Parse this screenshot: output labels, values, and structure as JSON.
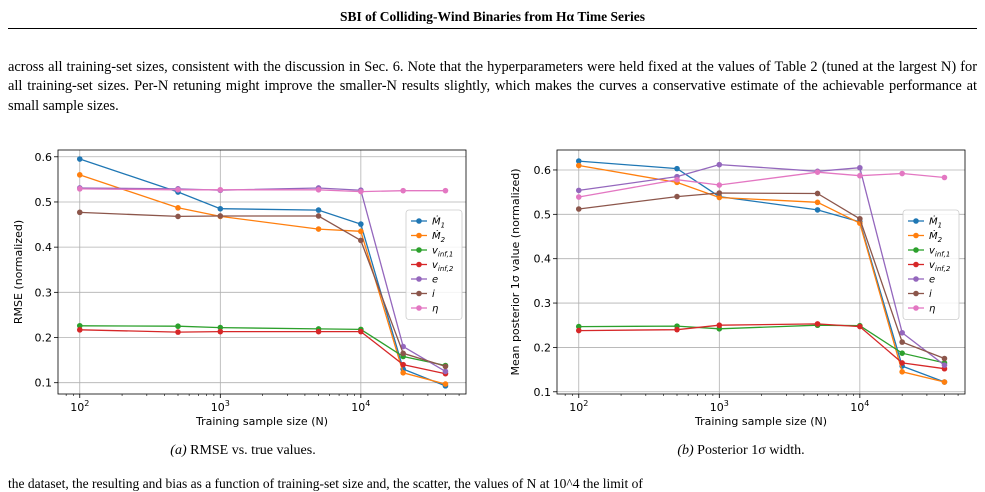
{
  "header": {
    "title": "SBI of Colliding-Wind Binaries from Hα Time Series"
  },
  "body_text": "across all training-set sizes, consistent with the discussion in Sec. 6. Note that the hyperparameters were held fixed at the values of Table 2 (tuned at the largest N) for all training-set sizes. Per-N retuning might improve the smaller-N results slightly, which makes the curves a conservative estimate of the achievable performance at small sample sizes.",
  "bottom_text": "the dataset, the resulting and bias as a function of training-set size and, the scatter, the values of N at 10^4 the limit of",
  "colors": {
    "M1": "#1f77b4",
    "M2": "#ff7f0e",
    "vinf1": "#2ca02c",
    "vinf2": "#d62728",
    "e": "#9467bd",
    "i": "#8c564b",
    "eta": "#e377c2"
  },
  "figures": [
    {
      "caption_label": "(a)",
      "caption_text": " RMSE vs. true values.",
      "chart_data": {
        "type": "line",
        "x_scale": "log",
        "xlim": [
          70,
          56000
        ],
        "ylim": [
          0.075,
          0.615
        ],
        "x": [
          100,
          500,
          1000,
          5000,
          10000,
          20000,
          40000
        ],
        "xticks": [
          100,
          1000,
          10000
        ],
        "xtick_labels": [
          "10^2",
          "10^3",
          "10^4"
        ],
        "yticks": [
          0.1,
          0.2,
          0.3,
          0.4,
          0.5,
          0.6
        ],
        "ytick_labels": [
          "0.1",
          "0.2",
          "0.3",
          "0.4",
          "0.5",
          "0.6"
        ],
        "xlabel": "Training sample size (N)",
        "ylabel": "RMSE (normalized)",
        "grid": true,
        "legend_loc": "center-right",
        "series": [
          {
            "name": "Ṁ1",
            "color_key": "M1",
            "values": [
              0.595,
              0.522,
              0.485,
              0.482,
              0.451,
              0.13,
              0.093
            ]
          },
          {
            "name": "Ṁ2",
            "color_key": "M2",
            "values": [
              0.56,
              0.487,
              0.468,
              0.44,
              0.435,
              0.122,
              0.097
            ]
          },
          {
            "name": "v_inf,1",
            "color_key": "vinf1",
            "values": [
              0.226,
              0.225,
              0.222,
              0.219,
              0.218,
              0.158,
              0.138
            ]
          },
          {
            "name": "v_inf,2",
            "color_key": "vinf2",
            "values": [
              0.217,
              0.212,
              0.213,
              0.213,
              0.213,
              0.14,
              0.12
            ]
          },
          {
            "name": "e",
            "color_key": "e",
            "values": [
              0.531,
              0.529,
              0.526,
              0.531,
              0.526,
              0.18,
              0.125
            ]
          },
          {
            "name": "i",
            "color_key": "i",
            "values": [
              0.477,
              0.468,
              0.469,
              0.469,
              0.415,
              0.165,
              0.136
            ]
          },
          {
            "name": "η",
            "color_key": "eta",
            "values": [
              0.529,
              0.527,
              0.527,
              0.527,
              0.523,
              0.525,
              0.525
            ]
          }
        ]
      }
    },
    {
      "caption_label": "(b)",
      "caption_text": " Posterior 1σ width.",
      "chart_data": {
        "type": "line",
        "x_scale": "log",
        "xlim": [
          70,
          56000
        ],
        "ylim": [
          0.095,
          0.645
        ],
        "x": [
          100,
          500,
          1000,
          5000,
          10000,
          20000,
          40000
        ],
        "xticks": [
          100,
          1000,
          10000
        ],
        "xtick_labels": [
          "10^2",
          "10^3",
          "10^4"
        ],
        "yticks": [
          0.1,
          0.2,
          0.3,
          0.4,
          0.5,
          0.6
        ],
        "ytick_labels": [
          "0.1",
          "0.2",
          "0.3",
          "0.4",
          "0.5",
          "0.6"
        ],
        "xlabel": "Training sample size (N)",
        "ylabel": "Mean posterior 1σ value (normalized)",
        "grid": true,
        "legend_loc": "center-right",
        "series": [
          {
            "name": "Ṁ1",
            "color_key": "M1",
            "values": [
              0.62,
              0.603,
              0.54,
              0.51,
              0.483,
              0.158,
              0.122
            ]
          },
          {
            "name": "Ṁ2",
            "color_key": "M2",
            "values": [
              0.61,
              0.572,
              0.538,
              0.527,
              0.48,
              0.145,
              0.122
            ]
          },
          {
            "name": "v_inf,1",
            "color_key": "vinf1",
            "values": [
              0.247,
              0.248,
              0.242,
              0.25,
              0.249,
              0.187,
              0.165
            ]
          },
          {
            "name": "v_inf,2",
            "color_key": "vinf2",
            "values": [
              0.238,
              0.24,
              0.25,
              0.253,
              0.247,
              0.165,
              0.152
            ]
          },
          {
            "name": "e",
            "color_key": "e",
            "values": [
              0.554,
              0.585,
              0.612,
              0.597,
              0.605,
              0.233,
              0.16
            ]
          },
          {
            "name": "i",
            "color_key": "i",
            "values": [
              0.512,
              0.54,
              0.548,
              0.547,
              0.49,
              0.212,
              0.175
            ]
          },
          {
            "name": "η",
            "color_key": "eta",
            "values": [
              0.539,
              0.578,
              0.566,
              0.595,
              0.587,
              0.592,
              0.583
            ]
          }
        ]
      }
    }
  ]
}
